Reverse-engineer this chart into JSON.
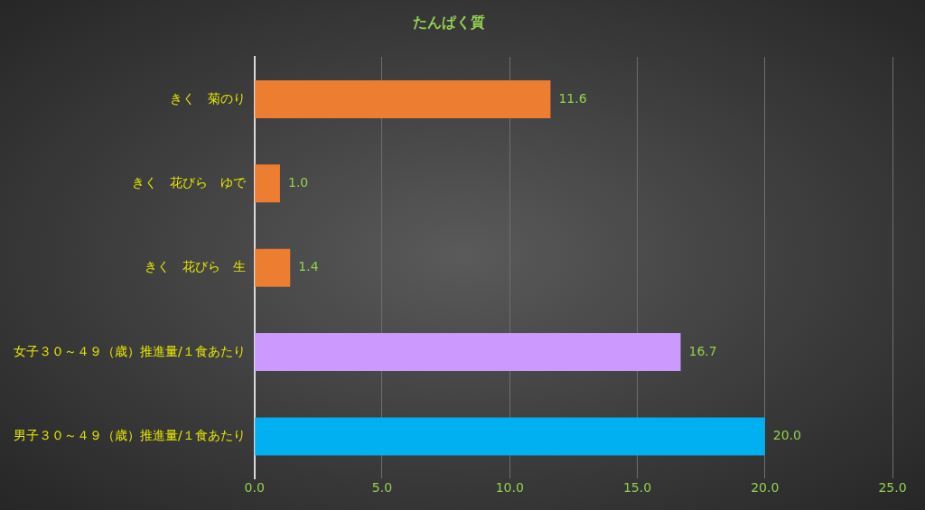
{
  "chart_data": {
    "type": "bar",
    "orientation": "horizontal",
    "title": "たんぱく質",
    "categories": [
      "きく　菊のり",
      "きく　花びら　ゆで",
      "きく　花びら　生",
      "女子３０～４９（歳）推進量/１食あたり",
      "男子３０～４９（歳）推進量/１食あたり"
    ],
    "values": [
      11.6,
      1.0,
      1.4,
      16.7,
      20.0
    ],
    "colors": [
      "#ed7d31",
      "#ed7d31",
      "#ed7d31",
      "#cc99ff",
      "#00b0f0"
    ],
    "value_labels": [
      "11.6",
      "1.0",
      "1.4",
      "16.7",
      "20.0"
    ],
    "xlim": [
      0,
      25
    ],
    "xticks": [
      {
        "value": 0,
        "label": "0.0"
      },
      {
        "value": 5,
        "label": "5.0"
      },
      {
        "value": 10,
        "label": "10.0"
      },
      {
        "value": 15,
        "label": "15.0"
      },
      {
        "value": 20,
        "label": "20.0"
      },
      {
        "value": 25,
        "label": "25.0"
      }
    ],
    "grid": "x",
    "legend": false
  }
}
